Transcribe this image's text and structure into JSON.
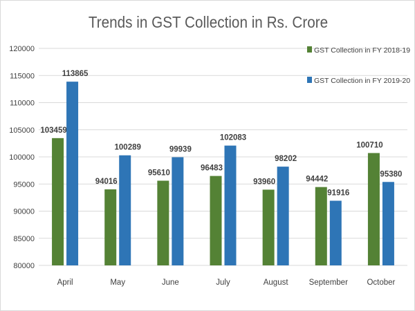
{
  "chart_data": {
    "type": "bar",
    "title": "Trends in GST Collection in Rs. Crore",
    "xlabel": "",
    "ylabel": "",
    "categories": [
      "April",
      "May",
      "June",
      "July",
      "August",
      "September",
      "October"
    ],
    "series": [
      {
        "name": "GST Collection in FY 2018-19",
        "color": "#548235",
        "values": [
          103459,
          94016,
          95610,
          96483,
          93960,
          94442,
          100710
        ]
      },
      {
        "name": "GST Collection in FY 2019-20",
        "color": "#2e75b6",
        "values": [
          113865,
          100289,
          99939,
          102083,
          98202,
          91916,
          95380
        ]
      }
    ],
    "ylim": [
      80000,
      120000
    ],
    "yticks": [
      80000,
      85000,
      90000,
      95000,
      100000,
      105000,
      110000,
      115000,
      120000
    ],
    "grid": true,
    "legend": "top-right",
    "data_labels": true
  }
}
